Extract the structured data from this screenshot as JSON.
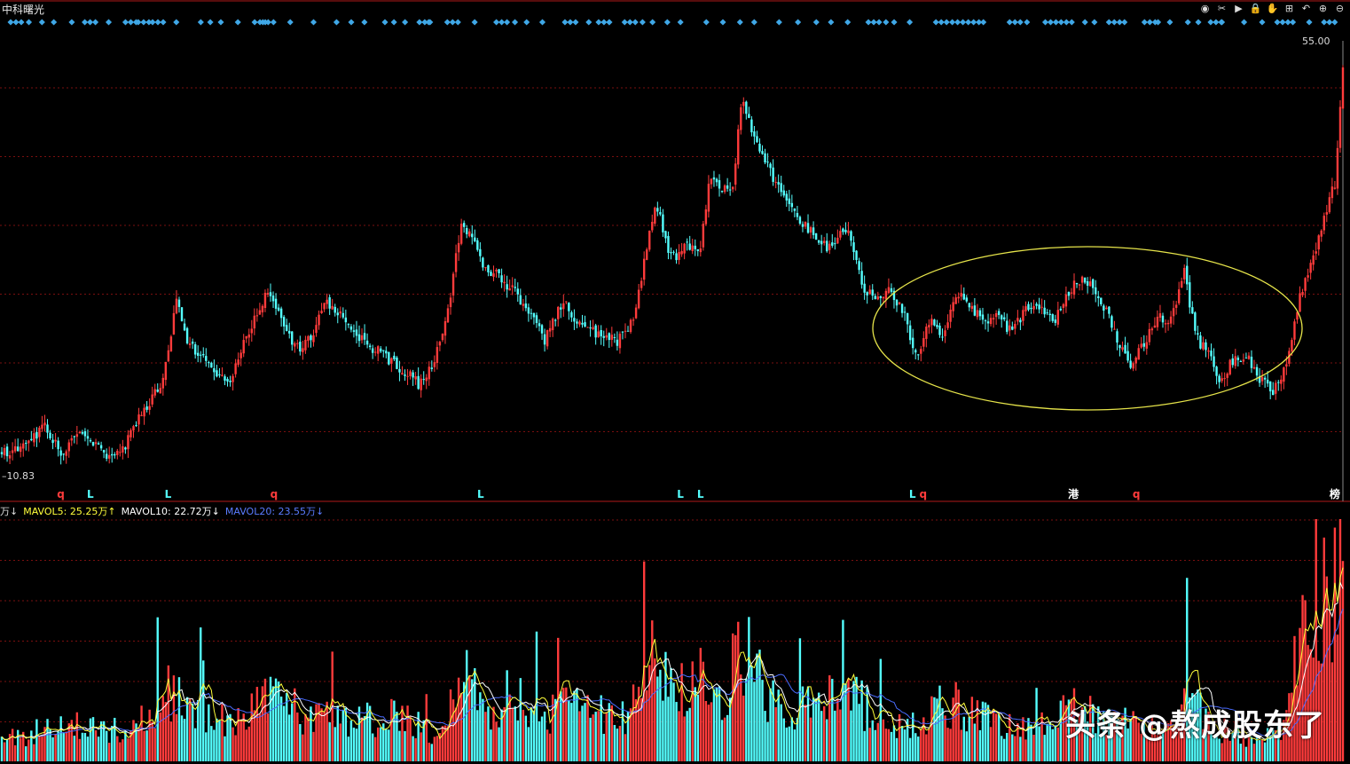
{
  "window": {
    "title": "中科曙光"
  },
  "toolbar": {
    "icons": [
      "eye-icon",
      "scissors-icon",
      "play-icon",
      "lock-icon",
      "hand-icon",
      "plus-box-icon",
      "undo-icon",
      "zoom-in-icon",
      "zoom-out-icon"
    ],
    "glyphs": [
      "◉",
      "✂",
      "▶",
      "🔒",
      "✋",
      "⊞",
      "↶",
      "⊕",
      "⊖"
    ]
  },
  "colors": {
    "up": "#ff3b3b",
    "down": "#54ffff",
    "grid": "#7a0f0f",
    "marker": "#3fa7e6",
    "ellipse": "#e6e44a",
    "mavol5": "#ffff3b",
    "mavol10": "#ffffff",
    "mavol20": "#4a6cff"
  },
  "event_labels": [
    {
      "text": "q",
      "color": "#ff3b3b",
      "pos": 0.044
    },
    {
      "text": "L",
      "color": "#54ffff",
      "pos": 0.066
    },
    {
      "text": "L",
      "color": "#54ffff",
      "pos": 0.124
    },
    {
      "text": "q",
      "color": "#ff3b3b",
      "pos": 0.203
    },
    {
      "text": "L",
      "color": "#54ffff",
      "pos": 0.357
    },
    {
      "text": "L",
      "color": "#54ffff",
      "pos": 0.506
    },
    {
      "text": "L",
      "color": "#54ffff",
      "pos": 0.521
    },
    {
      "text": "L",
      "color": "#54ffff",
      "pos": 0.679
    },
    {
      "text": "q",
      "color": "#ff3b3b",
      "pos": 0.687
    },
    {
      "text": "港",
      "color": "#ffffff",
      "pos": 0.799
    },
    {
      "text": "q",
      "color": "#ff3b3b",
      "pos": 0.846
    },
    {
      "text": "榜",
      "color": "#ffffff",
      "pos": 0.994
    }
  ],
  "indicator": {
    "unit_text": "万↓",
    "mavol5": "MAVOL5: 25.25万↑",
    "mavol10": "MAVOL10: 22.72万↓",
    "mavol20": "MAVOL20: 23.55万↓"
  },
  "watermark": "头条 @熬成股东了",
  "chart_data": {
    "type": "candlestick",
    "title": "中科曙光",
    "price_axis": {
      "max_label": "55.00",
      "min_label": "10.83",
      "ylim": [
        10.83,
        55.0
      ]
    },
    "grid": true,
    "annotation": "ellipse around the consolidation range",
    "price_path": [
      [
        0.0,
        13.0
      ],
      [
        0.02,
        14.0
      ],
      [
        0.032,
        15.8
      ],
      [
        0.046,
        12.8
      ],
      [
        0.055,
        15.0
      ],
      [
        0.068,
        14.4
      ],
      [
        0.08,
        12.8
      ],
      [
        0.09,
        13.5
      ],
      [
        0.105,
        17.2
      ],
      [
        0.12,
        20.5
      ],
      [
        0.13,
        28.5
      ],
      [
        0.14,
        24.0
      ],
      [
        0.15,
        23.0
      ],
      [
        0.16,
        21.0
      ],
      [
        0.17,
        20.0
      ],
      [
        0.18,
        24.5
      ],
      [
        0.19,
        27.0
      ],
      [
        0.198,
        29.5
      ],
      [
        0.21,
        26.0
      ],
      [
        0.222,
        23.5
      ],
      [
        0.232,
        25.0
      ],
      [
        0.24,
        28.5
      ],
      [
        0.252,
        27.5
      ],
      [
        0.262,
        25.5
      ],
      [
        0.275,
        24.0
      ],
      [
        0.29,
        22.5
      ],
      [
        0.3,
        21.5
      ],
      [
        0.312,
        20.0
      ],
      [
        0.322,
        22.5
      ],
      [
        0.332,
        27.0
      ],
      [
        0.342,
        36.0
      ],
      [
        0.35,
        35.0
      ],
      [
        0.36,
        32.0
      ],
      [
        0.372,
        31.0
      ],
      [
        0.385,
        29.0
      ],
      [
        0.395,
        27.0
      ],
      [
        0.405,
        24.5
      ],
      [
        0.418,
        28.5
      ],
      [
        0.43,
        26.5
      ],
      [
        0.445,
        25.0
      ],
      [
        0.46,
        24.5
      ],
      [
        0.472,
        27.0
      ],
      [
        0.478,
        32.0
      ],
      [
        0.488,
        38.5
      ],
      [
        0.496,
        34.0
      ],
      [
        0.505,
        33.0
      ],
      [
        0.512,
        34.5
      ],
      [
        0.52,
        33.0
      ],
      [
        0.528,
        41.5
      ],
      [
        0.535,
        40.0
      ],
      [
        0.545,
        39.5
      ],
      [
        0.552,
        50.0
      ],
      [
        0.56,
        45.0
      ],
      [
        0.566,
        44.0
      ],
      [
        0.575,
        41.0
      ],
      [
        0.585,
        38.5
      ],
      [
        0.595,
        36.5
      ],
      [
        0.605,
        35.5
      ],
      [
        0.615,
        34.0
      ],
      [
        0.622,
        35.0
      ],
      [
        0.632,
        35.5
      ],
      [
        0.642,
        30.0
      ],
      [
        0.652,
        28.5
      ],
      [
        0.662,
        29.5
      ],
      [
        0.672,
        27.5
      ],
      [
        0.682,
        23.0
      ],
      [
        0.692,
        26.5
      ],
      [
        0.702,
        25.0
      ],
      [
        0.712,
        29.5
      ],
      [
        0.722,
        28.0
      ],
      [
        0.732,
        26.5
      ],
      [
        0.742,
        27.0
      ],
      [
        0.752,
        25.5
      ],
      [
        0.765,
        28.0
      ],
      [
        0.775,
        27.5
      ],
      [
        0.785,
        26.5
      ],
      [
        0.795,
        29.5
      ],
      [
        0.805,
        31.0
      ],
      [
        0.815,
        30.0
      ],
      [
        0.825,
        27.0
      ],
      [
        0.835,
        23.5
      ],
      [
        0.842,
        22.0
      ],
      [
        0.852,
        24.5
      ],
      [
        0.862,
        27.0
      ],
      [
        0.872,
        26.5
      ],
      [
        0.882,
        31.5
      ],
      [
        0.89,
        25.0
      ],
      [
        0.9,
        23.0
      ],
      [
        0.908,
        20.5
      ],
      [
        0.918,
        22.5
      ],
      [
        0.928,
        23.0
      ],
      [
        0.938,
        20.5
      ],
      [
        0.948,
        19.5
      ],
      [
        0.958,
        22.0
      ],
      [
        0.968,
        29.0
      ],
      [
        0.978,
        33.0
      ],
      [
        0.988,
        38.0
      ],
      [
        0.994,
        40.5
      ],
      [
        1.0,
        52.5
      ]
    ],
    "volume_path": [
      [
        0.0,
        3
      ],
      [
        0.03,
        4
      ],
      [
        0.06,
        5
      ],
      [
        0.09,
        4
      ],
      [
        0.11,
        6
      ],
      [
        0.13,
        10
      ],
      [
        0.15,
        6
      ],
      [
        0.17,
        5
      ],
      [
        0.2,
        8
      ],
      [
        0.23,
        6
      ],
      [
        0.26,
        5
      ],
      [
        0.29,
        6
      ],
      [
        0.32,
        4
      ],
      [
        0.335,
        7
      ],
      [
        0.345,
        11
      ],
      [
        0.36,
        7
      ],
      [
        0.385,
        9
      ],
      [
        0.4,
        6
      ],
      [
        0.43,
        8
      ],
      [
        0.46,
        5
      ],
      [
        0.475,
        8
      ],
      [
        0.485,
        13
      ],
      [
        0.5,
        9
      ],
      [
        0.52,
        11
      ],
      [
        0.535,
        8
      ],
      [
        0.552,
        16
      ],
      [
        0.57,
        9
      ],
      [
        0.6,
        7
      ],
      [
        0.63,
        9
      ],
      [
        0.66,
        5
      ],
      [
        0.69,
        6
      ],
      [
        0.71,
        8
      ],
      [
        0.74,
        5
      ],
      [
        0.77,
        4
      ],
      [
        0.8,
        7
      ],
      [
        0.83,
        5
      ],
      [
        0.86,
        5
      ],
      [
        0.885,
        9
      ],
      [
        0.91,
        4
      ],
      [
        0.94,
        3
      ],
      [
        0.955,
        4
      ],
      [
        0.968,
        16
      ],
      [
        0.98,
        24
      ],
      [
        0.99,
        20
      ],
      [
        1.0,
        32
      ]
    ],
    "volume_axis": {
      "max": 32
    },
    "mavol": {
      "MAVOL5": "25.25万",
      "MAVOL10": "22.72万",
      "MAVOL20": "23.55万"
    }
  }
}
